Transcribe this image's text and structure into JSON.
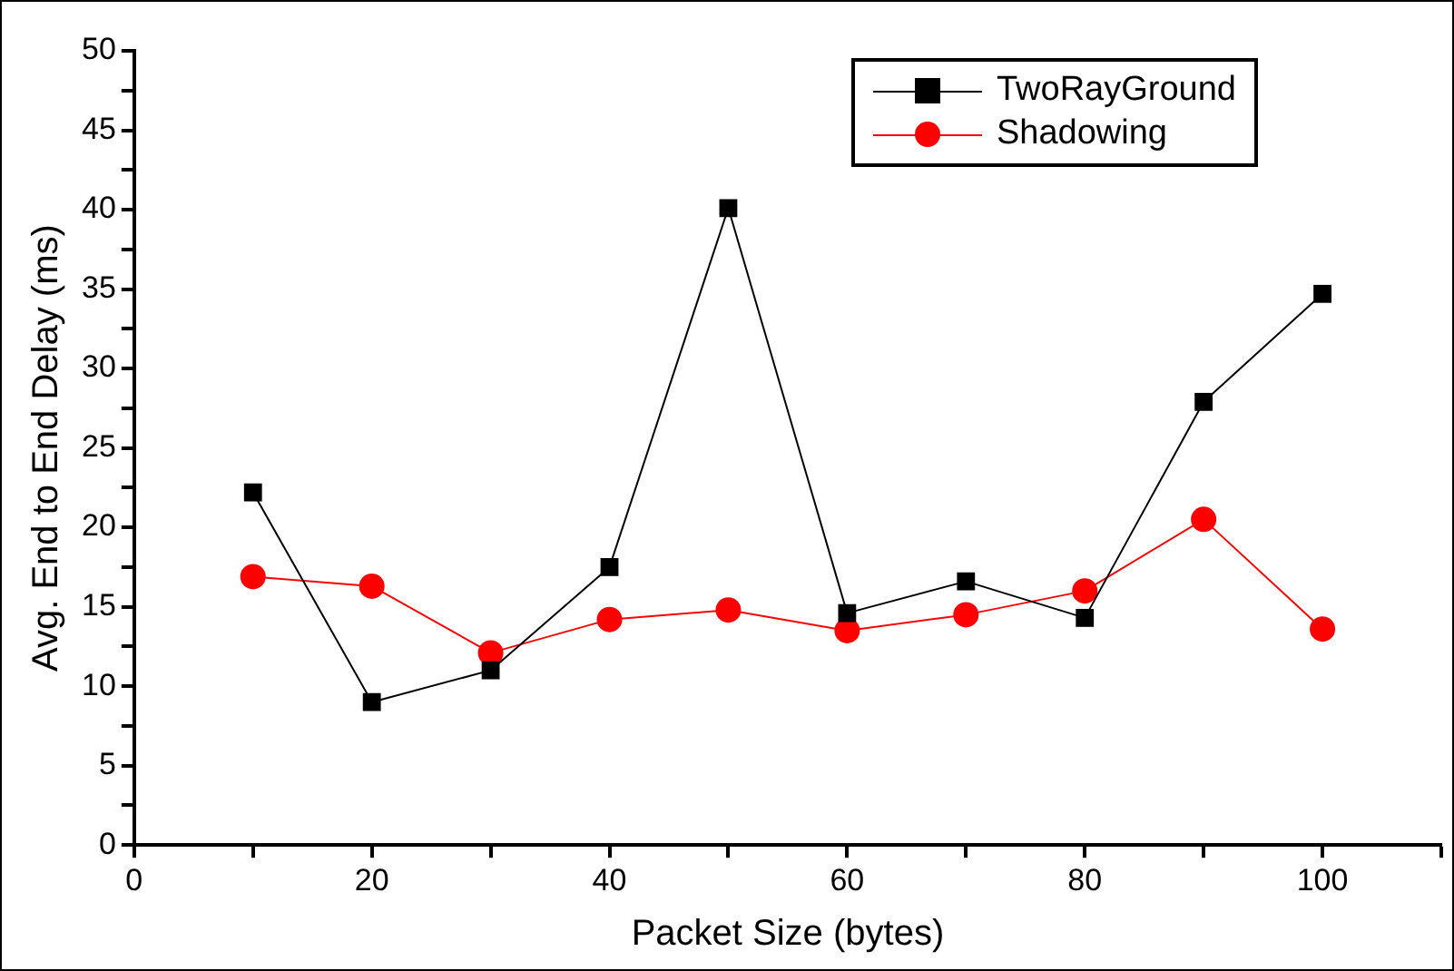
{
  "chart_data": {
    "type": "line",
    "xlabel": "Packet Size (bytes)",
    "ylabel": "Avg. End to End Delay (ms)",
    "x": [
      10,
      20,
      30,
      40,
      50,
      60,
      70,
      80,
      90,
      100
    ],
    "series": [
      {
        "name": "TwoRayGround",
        "color": "#000000",
        "marker": "square",
        "values": [
          22.2,
          9.0,
          11.0,
          17.5,
          40.1,
          14.6,
          16.6,
          14.3,
          27.9,
          34.7
        ]
      },
      {
        "name": "Shadowing",
        "color": "#ff0000",
        "marker": "circle",
        "values": [
          16.9,
          16.3,
          12.1,
          14.2,
          14.8,
          13.5,
          14.5,
          16.0,
          20.5,
          13.6
        ]
      }
    ],
    "xlim": [
      0,
      110
    ],
    "xticks": [
      0,
      {
        "value": 10,
        "label": null
      },
      20,
      {
        "value": 30,
        "label": null
      },
      40,
      {
        "value": 50,
        "label": null
      },
      60,
      {
        "value": 70,
        "label": null
      },
      80,
      {
        "value": 90,
        "label": null
      },
      100,
      {
        "value": 110,
        "label": null
      }
    ],
    "ylim": [
      0,
      50
    ],
    "yticks": [
      0,
      {
        "value": 2.5,
        "label": null
      },
      5,
      {
        "value": 7.5,
        "label": null
      },
      10,
      {
        "value": 12.5,
        "label": null
      },
      15,
      {
        "value": 17.5,
        "label": null
      },
      20,
      {
        "value": 22.5,
        "label": null
      },
      25,
      {
        "value": 27.5,
        "label": null
      },
      30,
      {
        "value": 32.5,
        "label": null
      },
      35,
      {
        "value": 37.5,
        "label": null
      },
      40,
      {
        "value": 42.5,
        "label": null
      },
      45,
      {
        "value": 47.5,
        "label": null
      },
      50
    ],
    "grid": false,
    "legend": "top right",
    "line_style": "solid"
  }
}
